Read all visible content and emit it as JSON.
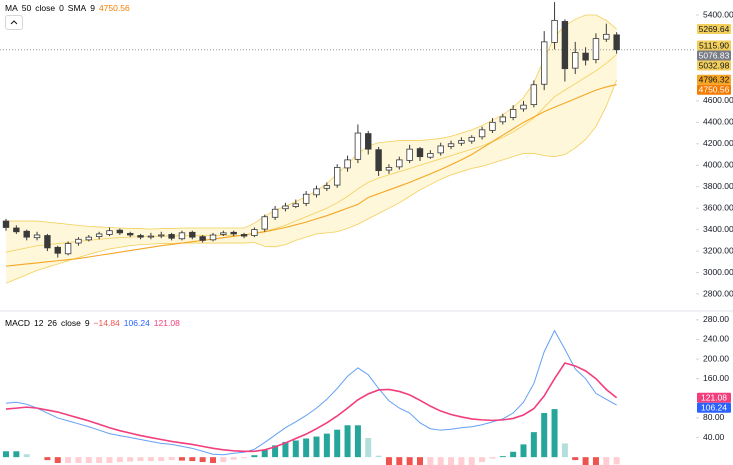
{
  "chart_data": [
    {
      "type": "candlestick",
      "legend": {
        "name": "MA",
        "params": [
          "50",
          "close",
          "0",
          "SMA",
          "9"
        ],
        "value": 4750.56,
        "color": "#f57c00"
      },
      "open": [
        3480,
        3415,
        3385,
        3325,
        3345,
        3235,
        3175,
        3275,
        3305,
        3335,
        3355,
        3395,
        3365,
        3345,
        3335,
        3345,
        3355,
        3315,
        3375,
        3335,
        3305,
        3355,
        3375,
        3355,
        3345,
        3405,
        3515,
        3595,
        3615,
        3645,
        3725,
        3785,
        3815,
        3975,
        4055,
        4295,
        4145,
        3955,
        3985,
        4045,
        4155,
        4075,
        4115,
        4175,
        4205,
        4225,
        4265,
        4325,
        4405,
        4445,
        4525,
        4565,
        4755,
        5145,
        5340,
        4905,
        5045,
        4985,
        5175,
        5215
      ],
      "high": [
        3500,
        3440,
        3400,
        3380,
        3360,
        3250,
        3290,
        3330,
        3350,
        3380,
        3420,
        3410,
        3380,
        3360,
        3370,
        3380,
        3370,
        3390,
        3390,
        3350,
        3370,
        3390,
        3390,
        3370,
        3420,
        3540,
        3620,
        3650,
        3680,
        3760,
        3810,
        3840,
        4010,
        4090,
        4380,
        4320,
        4170,
        4010,
        4080,
        4190,
        4170,
        4140,
        4210,
        4230,
        4260,
        4280,
        4360,
        4440,
        4480,
        4560,
        4600,
        4790,
        5250,
        5520,
        5360,
        5150,
        5100,
        5230,
        5320,
        5240
      ],
      "low": [
        3390,
        3360,
        3300,
        3300,
        3200,
        3140,
        3160,
        3250,
        3290,
        3310,
        3340,
        3350,
        3330,
        3310,
        3310,
        3320,
        3300,
        3300,
        3310,
        3280,
        3290,
        3340,
        3340,
        3320,
        3330,
        3380,
        3490,
        3570,
        3600,
        3620,
        3700,
        3760,
        3790,
        3940,
        4020,
        4100,
        3900,
        3920,
        3960,
        4020,
        4040,
        4060,
        4090,
        4150,
        4180,
        4200,
        4240,
        4300,
        4380,
        4420,
        4500,
        4540,
        4700,
        5080,
        4780,
        4850,
        4930,
        4950,
        5150,
        5040
      ],
      "close": [
        3420,
        3380,
        3330,
        3350,
        3230,
        3180,
        3270,
        3310,
        3330,
        3360,
        3390,
        3370,
        3350,
        3330,
        3340,
        3350,
        3320,
        3370,
        3330,
        3300,
        3350,
        3370,
        3360,
        3340,
        3400,
        3520,
        3590,
        3620,
        3640,
        3730,
        3780,
        3810,
        3980,
        4050,
        4300,
        4150,
        3950,
        3980,
        4050,
        4150,
        4080,
        4110,
        4180,
        4200,
        4230,
        4260,
        4330,
        4400,
        4450,
        4520,
        4560,
        4750,
        5150,
        5350,
        4900,
        5050,
        4980,
        5180,
        5220,
        5076.83
      ],
      "candle_colors": {
        "up": "#ffffff",
        "down": "#3a3a3a",
        "outline": "#3a3a3a"
      },
      "band_fill": "#fff5d1",
      "series": [
        {
          "color": "#f3cf5b",
          "values": [
            3480,
            3480,
            3480,
            3480,
            3470,
            3460,
            3450,
            3440,
            3430,
            3425,
            3420,
            3415,
            3410,
            3410,
            3405,
            3410,
            3410,
            3415,
            3415,
            3415,
            3415,
            3415,
            3415,
            3415,
            3460,
            3525,
            3580,
            3620,
            3660,
            3710,
            3760,
            3830,
            3920,
            4010,
            4110,
            4180,
            4210,
            4220,
            4230,
            4230,
            4230,
            4240,
            4250,
            4270,
            4300,
            4330,
            4370,
            4420,
            4470,
            4540,
            4630,
            4770,
            4990,
            5200,
            5300,
            5360,
            5400,
            5400,
            5350,
            5269.64
          ]
        },
        {
          "color": "#f3cf5b",
          "values": [
            3190,
            3210,
            3230,
            3250,
            3260,
            3270,
            3280,
            3290,
            3300,
            3310,
            3320,
            3325,
            3330,
            3335,
            3335,
            3340,
            3340,
            3345,
            3345,
            3345,
            3345,
            3345,
            3345,
            3345,
            3370,
            3385,
            3410,
            3440,
            3480,
            3520,
            3560,
            3600,
            3650,
            3710,
            3780,
            3840,
            3880,
            3910,
            3940,
            3970,
            4000,
            4030,
            4060,
            4090,
            4120,
            4150,
            4180,
            4220,
            4260,
            4310,
            4370,
            4440,
            4540,
            4640,
            4700,
            4760,
            4820,
            4880,
            4950,
            5032.98
          ]
        },
        {
          "color": "#f3cf5b",
          "values": [
            2900,
            2940,
            2980,
            3020,
            3050,
            3080,
            3110,
            3140,
            3170,
            3195,
            3220,
            3235,
            3250,
            3260,
            3265,
            3270,
            3270,
            3275,
            3275,
            3275,
            3275,
            3275,
            3275,
            3275,
            3280,
            3245,
            3240,
            3260,
            3300,
            3330,
            3360,
            3370,
            3380,
            3410,
            3450,
            3500,
            3550,
            3600,
            3650,
            3710,
            3770,
            3820,
            3870,
            3910,
            3940,
            3970,
            3990,
            4020,
            4050,
            4080,
            4110,
            4110,
            4090,
            4080,
            4100,
            4160,
            4240,
            4360,
            4550,
            4796.32
          ]
        },
        {
          "color": "#f5a623",
          "values": [
            3060,
            3070,
            3080,
            3090,
            3100,
            3110,
            3120,
            3130,
            3145,
            3160,
            3175,
            3190,
            3205,
            3220,
            3235,
            3250,
            3262,
            3275,
            3288,
            3300,
            3312,
            3325,
            3338,
            3350,
            3365,
            3380,
            3400,
            3420,
            3445,
            3470,
            3500,
            3530,
            3565,
            3600,
            3635,
            3700,
            3735,
            3770,
            3805,
            3840,
            3880,
            3920,
            3960,
            4005,
            4050,
            4100,
            4160,
            4220,
            4280,
            4340,
            4400,
            4450,
            4500,
            4540,
            4580,
            4620,
            4660,
            4700,
            4730,
            4750.56
          ]
        }
      ],
      "ylim": [
        2651,
        5540
      ],
      "yticks": [
        {
          "value": 5400,
          "label": "5400.00"
        },
        {
          "value": 4600,
          "label": "4600.00"
        },
        {
          "value": 4400,
          "label": "4400.00"
        },
        {
          "value": 4200,
          "label": "4200.00"
        },
        {
          "value": 4000,
          "label": "4000.00"
        },
        {
          "value": 3800,
          "label": "3800.00"
        },
        {
          "value": 3600,
          "label": "3600.00"
        },
        {
          "value": 3400,
          "label": "3400.00"
        },
        {
          "value": 3200,
          "label": "3200.00"
        },
        {
          "value": 3000,
          "label": "3000.00"
        },
        {
          "value": 2800,
          "label": "2800.00"
        }
      ],
      "price_labels": [
        {
          "value": 5269.64,
          "color": "#f3cf5b",
          "text_color": "#131722"
        },
        {
          "value": {
            "value": 5115.9,
            "label": "5115.90"
          },
          "color": "#f3cf5b",
          "text_color": "#131722"
        },
        {
          "value": 5076.83,
          "color": "#787b86",
          "text_color": "#ffffff"
        },
        {
          "value": 5032.98,
          "color": "#f3cf5b",
          "text_color": "#131722"
        },
        {
          "value": 4796.32,
          "color": "#f5a623",
          "text_color": "#131722"
        },
        {
          "value": 4750.56,
          "color": "#f57c00",
          "text_color": "#ffffff"
        }
      ],
      "last_price_line": "#9598a1"
    },
    {
      "type": "macd",
      "legend": {
        "name": "MACD",
        "params": [
          "12",
          "26",
          "close",
          "9"
        ],
        "values": [
          {
            "text": "−14.84",
            "color": "#ef5350"
          },
          {
            "text": "106.24",
            "color": "#2962ff"
          },
          {
            "text": "121.08",
            "color": "#f23e7d"
          }
        ]
      },
      "histogram": [
        12,
        12,
        6,
        0,
        -6,
        -12,
        -12,
        -12,
        -12,
        -12,
        -12,
        -10,
        -9,
        -8,
        -8,
        -8,
        -6,
        -7,
        -8,
        -10,
        -12,
        -10,
        -5,
        -2,
        4,
        15,
        24,
        31,
        34,
        38,
        42,
        48,
        56,
        65,
        65,
        39,
        3,
        -23,
        -34,
        -37,
        -46,
        -46,
        -39,
        -30,
        -22,
        -16,
        -10,
        -3,
        2,
        11,
        26,
        51,
        90,
        98,
        28,
        -6,
        -16,
        -30,
        -20,
        -14.84
      ],
      "histogram_colors": {
        "positive_rising": "#26a69a",
        "positive_falling": "#b2dfdb",
        "negative_rising": "#ffcdd2",
        "negative_falling": "#ef5350"
      },
      "series": [
        {
          "color": "#64a0f4",
          "values": [
            110,
            112,
            108,
            100,
            90,
            80,
            74,
            68,
            62,
            55,
            48,
            44,
            40,
            36,
            32,
            28,
            26,
            22,
            18,
            12,
            6,
            5,
            8,
            10,
            16,
            30,
            45,
            60,
            72,
            85,
            100,
            118,
            140,
            165,
            182,
            168,
            140,
            115,
            100,
            90,
            70,
            58,
            55,
            57,
            60,
            62,
            66,
            72,
            78,
            90,
            112,
            150,
            215,
            258,
            220,
            180,
            160,
            130,
            118,
            106.24
          ]
        },
        {
          "color": "#f23e7d",
          "values": [
            98,
            100,
            102,
            100,
            96,
            92,
            86,
            80,
            74,
            67,
            60,
            54,
            49,
            44,
            40,
            36,
            32,
            29,
            26,
            22,
            18,
            15,
            13,
            12,
            12,
            15,
            21,
            29,
            38,
            47,
            58,
            70,
            84,
            100,
            117,
            129,
            137,
            138,
            134,
            127,
            116,
            104,
            94,
            87,
            82,
            78,
            76,
            75,
            76,
            79,
            86,
            99,
            125,
            160,
            192,
            186,
            176,
            160,
            138,
            121.08
          ]
        }
      ],
      "ylim": [
        -16,
        296
      ],
      "yticks": [
        {
          "value": 280,
          "label": "280.00"
        },
        {
          "value": 240,
          "label": "240.00"
        },
        {
          "value": 200,
          "label": "200.00"
        },
        {
          "value": 160,
          "label": "160.00"
        },
        {
          "value": 80,
          "label": "80.00"
        },
        {
          "value": 40,
          "label": "40.00"
        }
      ],
      "price_labels": [
        {
          "value": 121.08,
          "color": "#f23e7d",
          "text_color": "#ffffff"
        },
        {
          "value": 106.24,
          "color": "#2962ff",
          "text_color": "#ffffff"
        }
      ]
    }
  ]
}
